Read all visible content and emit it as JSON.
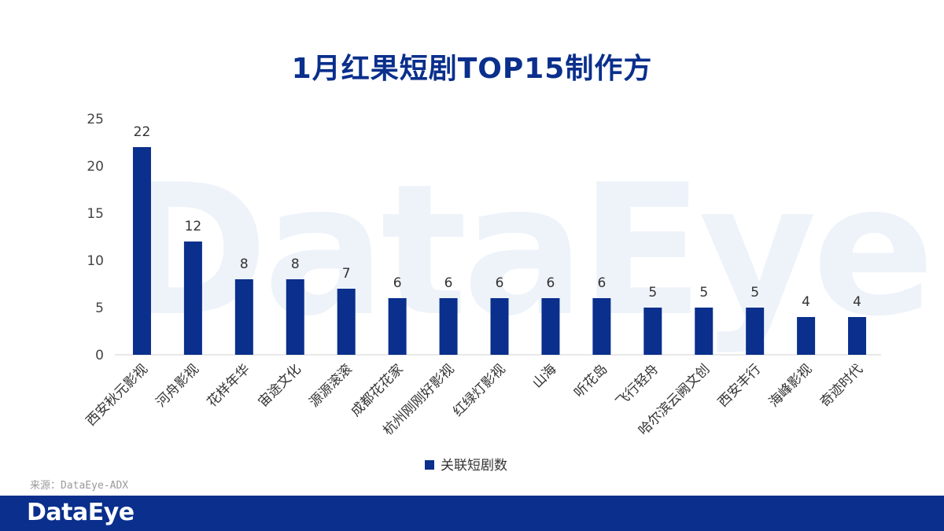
{
  "chart_data": {
    "type": "bar",
    "title": "1月红果短剧TOP15制作方",
    "categories": [
      "西安秋元影视",
      "河舟影视",
      "花样年华",
      "宙途文化",
      "源源滚滚",
      "成都花花家",
      "杭州刚刚好影视",
      "红绿灯影视",
      "山海",
      "听花岛",
      "飞行轻舟",
      "哈尔滨云阙文创",
      "西安丰行",
      "海峰影视",
      "奇迹时代"
    ],
    "series": [
      {
        "name": "关联短剧数",
        "values": [
          22,
          12,
          8,
          8,
          7,
          6,
          6,
          6,
          6,
          6,
          5,
          5,
          5,
          4,
          4
        ]
      }
    ],
    "ylim": [
      0,
      25
    ],
    "yticks": [
      0,
      5,
      10,
      15,
      20,
      25
    ],
    "legend_position": "bottom",
    "grid": false,
    "bar_color": "#0a2f8c"
  },
  "watermark": "DataEye",
  "source_text": "来源：DataEye-ADX",
  "footer_logo": "DataEye"
}
